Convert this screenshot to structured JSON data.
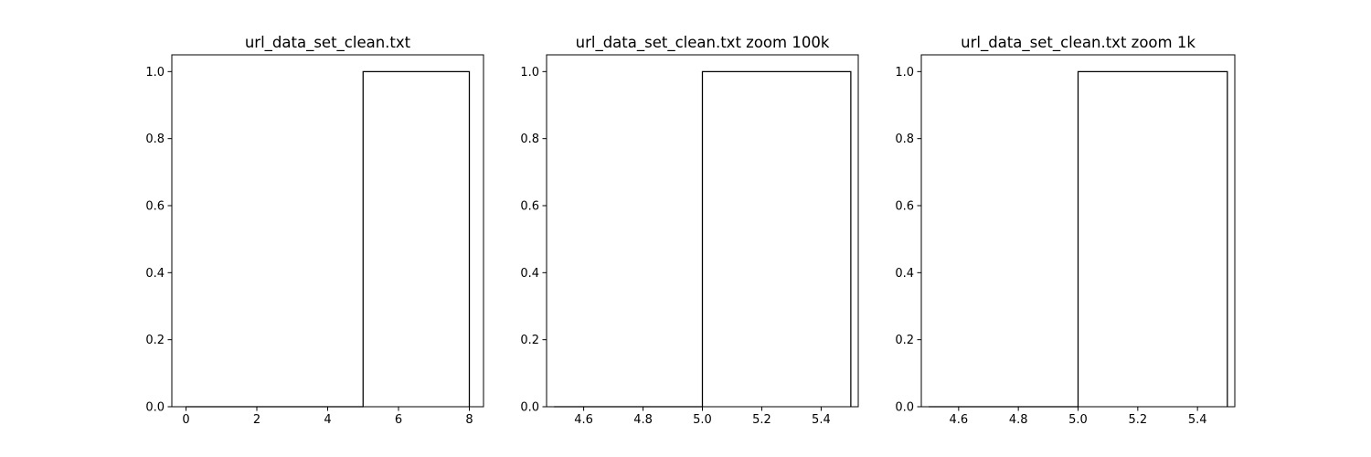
{
  "chart_data": [
    {
      "type": "line",
      "title": "url_data_set_clean.txt",
      "xlabel": "",
      "ylabel": "",
      "xlim": [
        -0.4,
        8.4
      ],
      "ylim": [
        0,
        1.05
      ],
      "xticks": [
        0,
        2,
        4,
        6,
        8
      ],
      "xtick_labels": [
        "0",
        "2",
        "4",
        "6",
        "8"
      ],
      "yticks": [
        0.0,
        0.2,
        0.4,
        0.6,
        0.8,
        1.0
      ],
      "ytick_labels": [
        "0.0",
        "0.2",
        "0.4",
        "0.6",
        "0.8",
        "1.0"
      ],
      "grid": false,
      "series": [
        {
          "x": [
            0,
            5,
            5,
            8,
            8
          ],
          "y": [
            0,
            0,
            1,
            1,
            0
          ],
          "color": "#000000"
        }
      ]
    },
    {
      "type": "line",
      "title": "url_data_set_clean.txt zoom 100k",
      "xlabel": "",
      "ylabel": "",
      "xlim": [
        4.475,
        5.525
      ],
      "ylim": [
        0,
        1.05
      ],
      "xticks": [
        4.6,
        4.8,
        5.0,
        5.2,
        5.4
      ],
      "xtick_labels": [
        "4.6",
        "4.8",
        "5.0",
        "5.2",
        "5.4"
      ],
      "yticks": [
        0.0,
        0.2,
        0.4,
        0.6,
        0.8,
        1.0
      ],
      "ytick_labels": [
        "0.0",
        "0.2",
        "0.4",
        "0.6",
        "0.8",
        "1.0"
      ],
      "grid": false,
      "series": [
        {
          "x": [
            4.5,
            5.0,
            5.0,
            5.5,
            5.5
          ],
          "y": [
            0,
            0,
            1,
            1,
            0
          ],
          "color": "#000000"
        }
      ]
    },
    {
      "type": "line",
      "title": "url_data_set_clean.txt zoom 1k",
      "xlabel": "",
      "ylabel": "",
      "xlim": [
        4.475,
        5.525
      ],
      "ylim": [
        0,
        1.05
      ],
      "xticks": [
        4.6,
        4.8,
        5.0,
        5.2,
        5.4
      ],
      "xtick_labels": [
        "4.6",
        "4.8",
        "5.0",
        "5.2",
        "5.4"
      ],
      "yticks": [
        0.0,
        0.2,
        0.4,
        0.6,
        0.8,
        1.0
      ],
      "ytick_labels": [
        "0.0",
        "0.2",
        "0.4",
        "0.6",
        "0.8",
        "1.0"
      ],
      "grid": false,
      "series": [
        {
          "x": [
            4.5,
            5.0,
            5.0,
            5.5,
            5.5
          ],
          "y": [
            0,
            0,
            1,
            1,
            0
          ],
          "color": "#000000"
        }
      ]
    }
  ]
}
